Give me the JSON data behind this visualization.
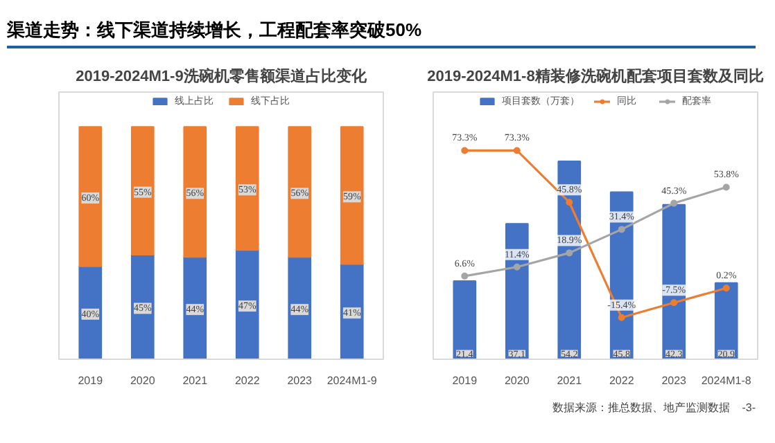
{
  "chart_data": [
    {
      "type": "other",
      "title": "渠道走势：线下渠道持续增长，工程配套率突破50%",
      "annotations": [
        "数据来源：推总数据、地产监测数据",
        "-3-"
      ]
    },
    {
      "type": "bar",
      "title": "2019-2024M1-9洗碗机零售额渠道占比变化",
      "categories": [
        "2019",
        "2020",
        "2021",
        "2022",
        "2023",
        "2024M1-9"
      ],
      "stacked": true,
      "legend": "top",
      "grid": false,
      "series": [
        {
          "name": "线上占比",
          "color": "#4472c4",
          "values": [
            40,
            45,
            44,
            47,
            44,
            41
          ],
          "value_labels": [
            "40%",
            "45%",
            "44%",
            "47%",
            "44%",
            "41%"
          ]
        },
        {
          "name": "线下占比",
          "color": "#ed7d31",
          "values": [
            60,
            55,
            56,
            53,
            56,
            59
          ],
          "value_labels": [
            "60%",
            "55%",
            "56%",
            "53%",
            "56%",
            "59%"
          ]
        }
      ]
    },
    {
      "type": "bar",
      "title": "2019-2024M1-8精装修洗碗机配套项目套数及同比",
      "categories": [
        "2019",
        "2020",
        "2021",
        "2022",
        "2023",
        "2024M1-8"
      ],
      "legend": "top",
      "marker": "circle",
      "grid": false,
      "series": [
        {
          "name": "项目套数（万套）",
          "color": "#4472c4",
          "values": [
            21.4,
            37.1,
            54.2,
            45.8,
            42.3,
            20.9
          ],
          "value_labels": [
            "21.4",
            "37.1",
            "54.2",
            "45.8",
            "42.3",
            "20.9"
          ]
        },
        {
          "name": "同比",
          "type": "line",
          "axis": "y2",
          "color": "#ed7d31",
          "values": [
            73.3,
            73.3,
            45.8,
            -15.4,
            -7.5,
            0.2
          ],
          "value_labels": [
            "73.3%",
            "73.3%",
            "45.8%",
            "-15.4%",
            "-7.5%",
            "0.2%"
          ]
        },
        {
          "name": "配套率",
          "type": "line",
          "axis": "y2",
          "color": "#a5a5a5",
          "values": [
            6.6,
            11.4,
            18.9,
            31.4,
            45.3,
            53.8
          ],
          "value_labels": [
            "6.6%",
            "11.4%",
            "18.9%",
            "31.4%",
            "45.3%",
            "53.8%"
          ]
        }
      ]
    }
  ]
}
